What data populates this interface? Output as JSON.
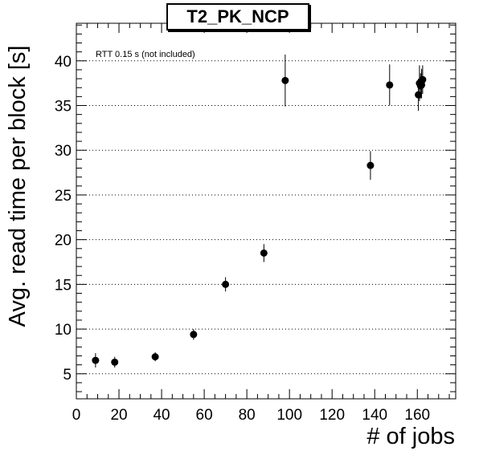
{
  "chart_data": {
    "type": "scatter",
    "title": "T2_PK_NCP",
    "xlabel": "# of jobs",
    "ylabel": "Avg. read time per block [s]",
    "annotation": "RTT 0.15 s (not included)",
    "xlim": [
      0,
      178
    ],
    "ylim": [
      2.2,
      44.2
    ],
    "x_ticks": [
      0,
      20,
      40,
      60,
      80,
      100,
      120,
      140,
      160
    ],
    "y_ticks": [
      5,
      10,
      15,
      20,
      25,
      30,
      35,
      40
    ],
    "grid": "horizontal dotted",
    "points": [
      {
        "x": 9,
        "y": 6.5,
        "err": 0.8
      },
      {
        "x": 18,
        "y": 6.3,
        "err": 0.6
      },
      {
        "x": 37,
        "y": 6.9,
        "err": 0.5
      },
      {
        "x": 55,
        "y": 9.4,
        "err": 0.6
      },
      {
        "x": 70,
        "y": 15.0,
        "err": 0.8
      },
      {
        "x": 88,
        "y": 18.5,
        "err": 1.0
      },
      {
        "x": 98,
        "y": 37.8,
        "err": 2.9
      },
      {
        "x": 138,
        "y": 28.3,
        "err": 1.6
      },
      {
        "x": 147,
        "y": 37.3,
        "err": 2.3
      },
      {
        "x": 160.5,
        "y": 36.2,
        "err": 1.8
      },
      {
        "x": 161,
        "y": 37.5,
        "err": 2.0
      },
      {
        "x": 161.5,
        "y": 37.2,
        "err": 1.4
      },
      {
        "x": 162,
        "y": 37.7,
        "err": 1.4
      },
      {
        "x": 162.5,
        "y": 37.9,
        "err": 1.6
      },
      {
        "x": 162,
        "y": 37.3,
        "err": 1.5
      }
    ]
  }
}
